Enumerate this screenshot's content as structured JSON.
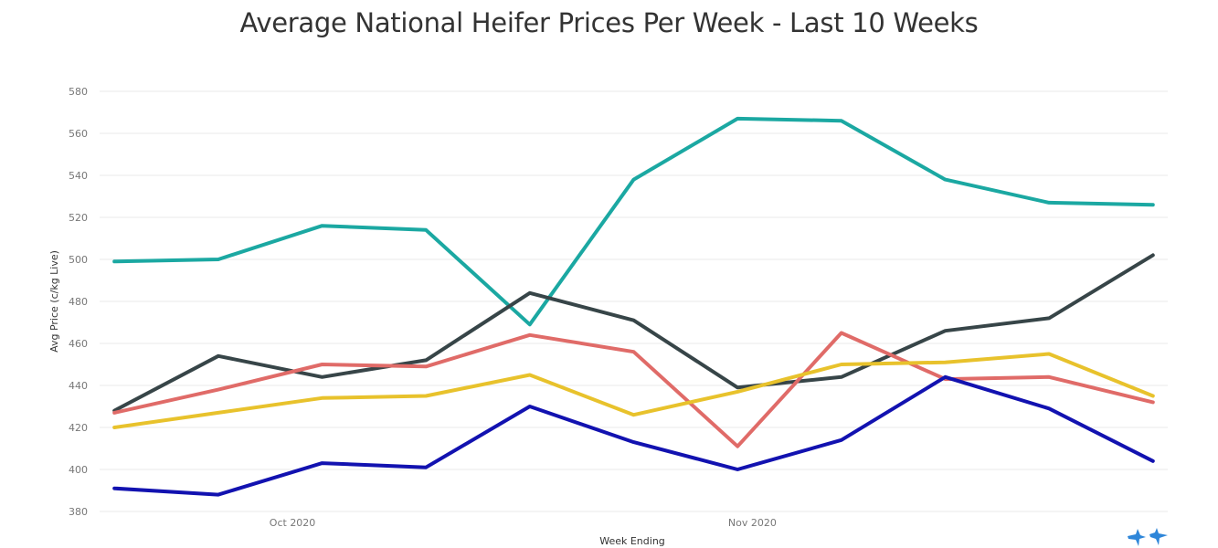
{
  "chart_data": {
    "type": "line",
    "title": "Average National Heifer Prices Per Week - Last 10 Weeks",
    "xlabel": "Week Ending",
    "ylabel": "Avg Price (c/kg Live)",
    "ylim": [
      380,
      580
    ],
    "yticks": [
      380,
      400,
      420,
      440,
      460,
      480,
      500,
      520,
      540,
      560,
      580
    ],
    "x": [
      "2020-09-19",
      "2020-09-26",
      "2020-10-03",
      "2020-10-10",
      "2020-10-17",
      "2020-10-24",
      "2020-10-31",
      "2020-11-07",
      "2020-11-14",
      "2020-11-21",
      "2020-11-28"
    ],
    "xlim": [
      "2020-09-18",
      "2020-11-29"
    ],
    "xticks": [
      {
        "date": "2020-10-01",
        "label": "Oct 2020"
      },
      {
        "date": "2020-11-01",
        "label": "Nov 2020"
      }
    ],
    "grid": true,
    "series": [
      {
        "color": "#1ba8a2",
        "values": [
          499,
          500,
          516,
          514,
          469,
          538,
          567,
          566,
          538,
          527,
          526
        ]
      },
      {
        "color": "#374548",
        "values": [
          428,
          454,
          444,
          452,
          484,
          471,
          439,
          444,
          466,
          472,
          502
        ]
      },
      {
        "color": "#e06b68",
        "values": [
          427,
          438,
          450,
          449,
          464,
          456,
          411,
          465,
          443,
          444,
          432
        ]
      },
      {
        "color": "#e8c22c",
        "values": [
          420,
          427,
          434,
          435,
          445,
          426,
          437,
          450,
          451,
          455,
          435
        ]
      },
      {
        "color": "#1212b0",
        "values": [
          391,
          388,
          403,
          401,
          430,
          413,
          400,
          414,
          444,
          429,
          404
        ]
      }
    ]
  },
  "logo": {
    "name": "brand-logo-icon",
    "color": "#2e86d9"
  }
}
